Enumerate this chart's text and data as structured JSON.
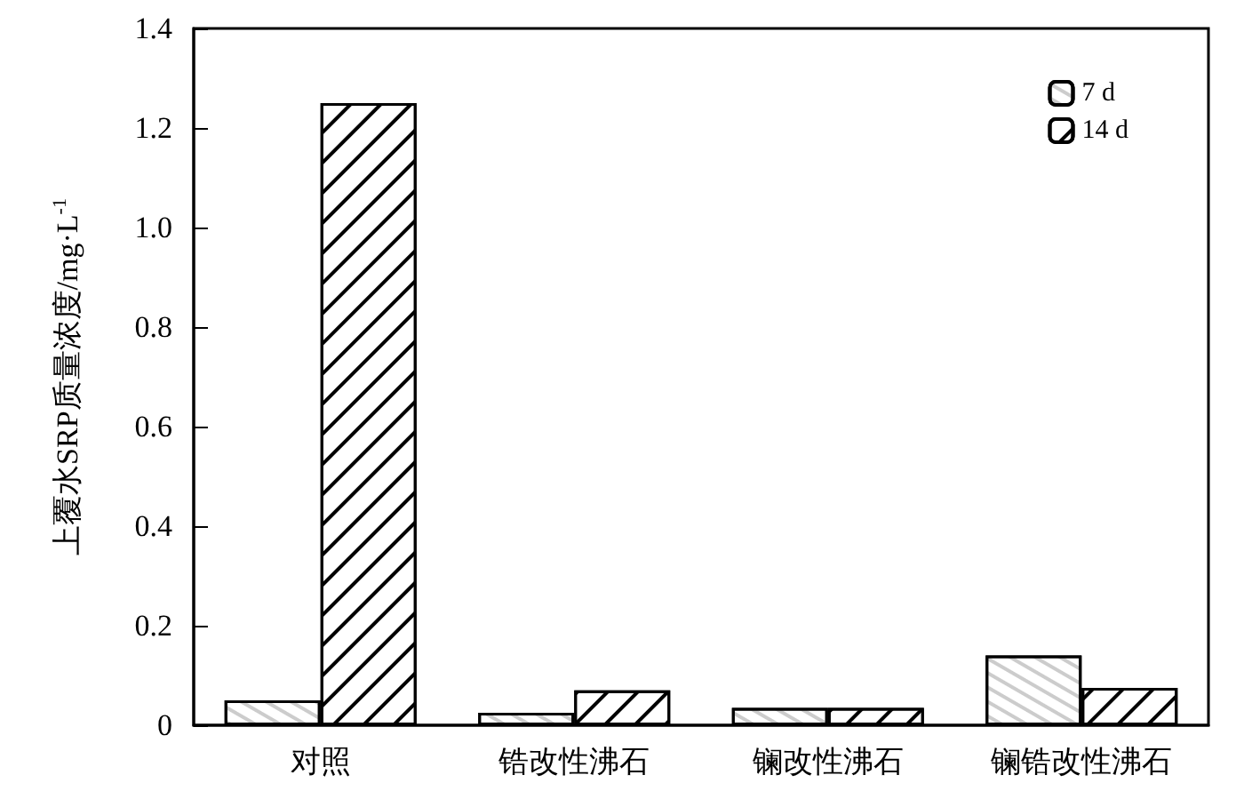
{
  "chart_data": {
    "type": "bar",
    "ylabel": "上覆水SRP质量浓度/mg·L$^{-1}$",
    "categories": [
      "对照",
      "锆改性沸石",
      "镧改性沸石",
      "镧锆改性沸石"
    ],
    "series": [
      {
        "name": "7 d",
        "color": "#000000",
        "values": [
          0.05,
          0.025,
          0.035,
          0.14
        ]
      },
      {
        "name": "14 d",
        "color": "#000000",
        "values": [
          1.25,
          0.07,
          0.035,
          0.075
        ]
      }
    ],
    "ylim": [
      0,
      1.4
    ],
    "yticks": [
      {
        "value": 0,
        "label": "0"
      },
      0.2,
      0.4,
      0.6,
      0.8,
      {
        "value": 1,
        "label": "1.0"
      },
      1.2,
      1.4
    ],
    "grid": false,
    "legend": "top right"
  }
}
